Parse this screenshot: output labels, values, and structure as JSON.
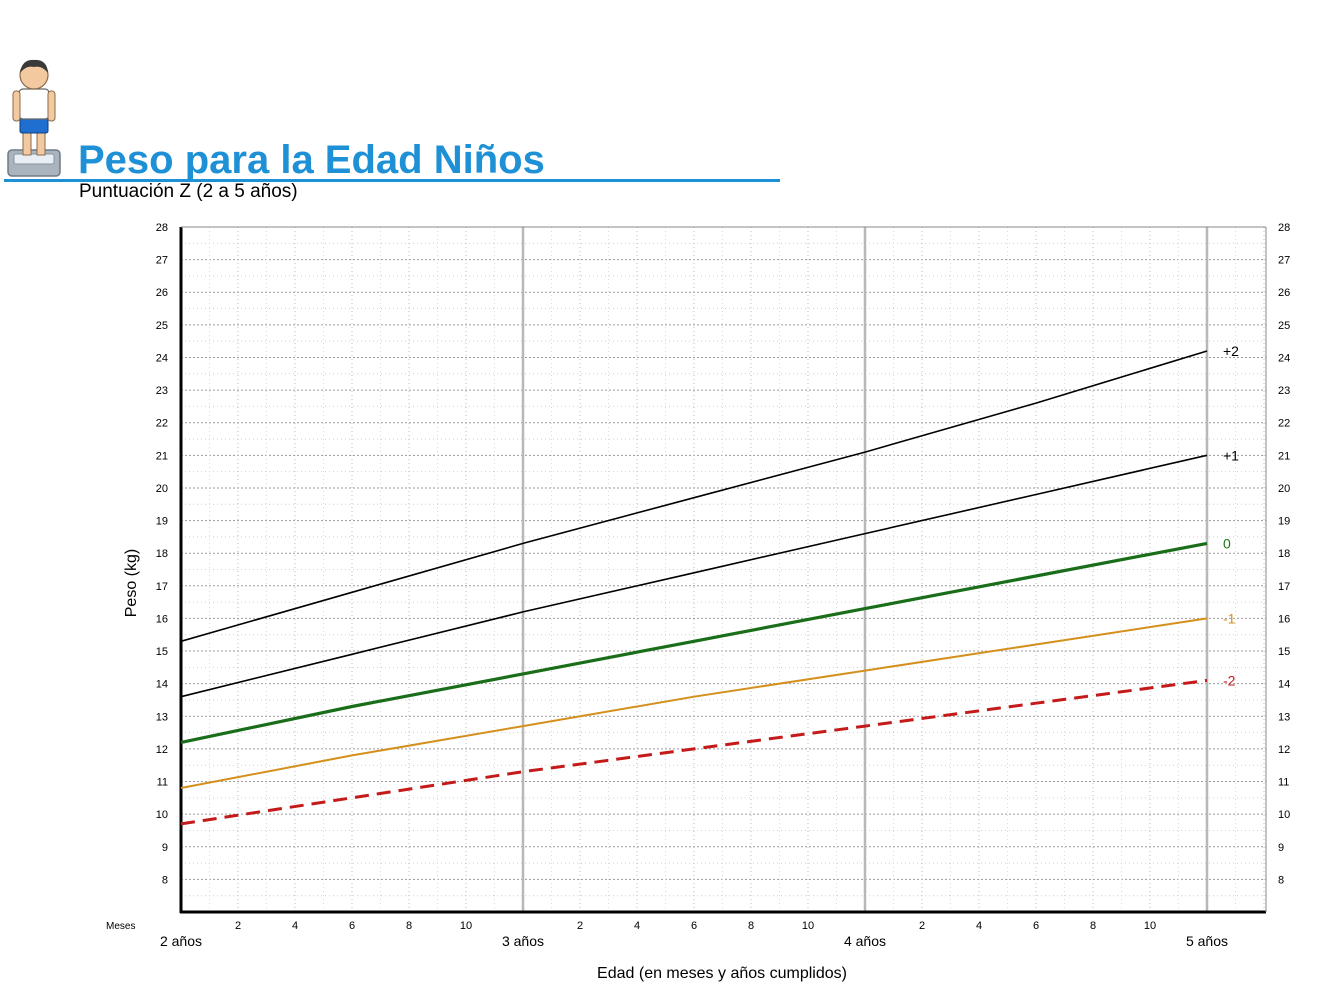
{
  "page": {
    "title": "Peso para la Edad Niños",
    "subtitle": "Puntuación Z (2 a 5 años)",
    "icon": "boy-on-scale-icon"
  },
  "chart_data": {
    "type": "line",
    "title": "Peso para la Edad Niños",
    "subtitle": "Puntuación Z (2 a 5 años)",
    "xlabel": "Edad (en meses y años cumplidos)",
    "ylabel": "Peso (kg)",
    "months_label": "Meses",
    "xlim": [
      24,
      60
    ],
    "ylim": [
      7,
      28
    ],
    "y_ticks": [
      8,
      9,
      10,
      11,
      12,
      13,
      14,
      15,
      16,
      17,
      18,
      19,
      20,
      21,
      22,
      23,
      24,
      25,
      26,
      27,
      28
    ],
    "year_ticks": [
      {
        "x": 24,
        "label": "2 años"
      },
      {
        "x": 36,
        "label": "3 años"
      },
      {
        "x": 48,
        "label": "4 años"
      },
      {
        "x": 60,
        "label": "5 años"
      }
    ],
    "month_ticks": [
      {
        "x": 26,
        "label": "2"
      },
      {
        "x": 28,
        "label": "4"
      },
      {
        "x": 30,
        "label": "6"
      },
      {
        "x": 32,
        "label": "8"
      },
      {
        "x": 34,
        "label": "10"
      },
      {
        "x": 38,
        "label": "2"
      },
      {
        "x": 40,
        "label": "4"
      },
      {
        "x": 42,
        "label": "6"
      },
      {
        "x": 44,
        "label": "8"
      },
      {
        "x": 46,
        "label": "10"
      },
      {
        "x": 50,
        "label": "2"
      },
      {
        "x": 52,
        "label": "4"
      },
      {
        "x": 54,
        "label": "6"
      },
      {
        "x": 56,
        "label": "8"
      },
      {
        "x": 58,
        "label": "10"
      }
    ],
    "grid": true,
    "series": [
      {
        "name": "+2",
        "color": "#000000",
        "dashed": false,
        "width": 1.6,
        "label_color": "#000000",
        "x": [
          24,
          30,
          36,
          42,
          48,
          54,
          60
        ],
        "values": [
          15.3,
          16.8,
          18.3,
          19.7,
          21.1,
          22.6,
          24.2
        ]
      },
      {
        "name": "+1",
        "color": "#000000",
        "dashed": false,
        "width": 1.6,
        "label_color": "#000000",
        "x": [
          24,
          30,
          36,
          42,
          48,
          54,
          60
        ],
        "values": [
          13.6,
          14.9,
          16.2,
          17.4,
          18.6,
          19.8,
          21.0
        ]
      },
      {
        "name": "0",
        "color": "#1a6e1a",
        "dashed": false,
        "width": 3.2,
        "label_color": "#1a7a1a",
        "x": [
          24,
          30,
          36,
          42,
          48,
          54,
          60
        ],
        "values": [
          12.2,
          13.3,
          14.3,
          15.3,
          16.3,
          17.3,
          18.3
        ]
      },
      {
        "name": "-1",
        "color": "#d4901c",
        "dashed": false,
        "width": 2.0,
        "label_color": "#d4901c",
        "x": [
          24,
          30,
          36,
          42,
          48,
          54,
          60
        ],
        "values": [
          10.8,
          11.8,
          12.7,
          13.6,
          14.4,
          15.2,
          16.0
        ]
      },
      {
        "name": "-2",
        "color": "#c41a1a",
        "dashed": true,
        "width": 3.0,
        "label_color": "#c41a1a",
        "x": [
          24,
          30,
          36,
          42,
          48,
          54,
          60
        ],
        "values": [
          9.7,
          10.5,
          11.3,
          12.0,
          12.7,
          13.4,
          14.1
        ]
      }
    ]
  }
}
